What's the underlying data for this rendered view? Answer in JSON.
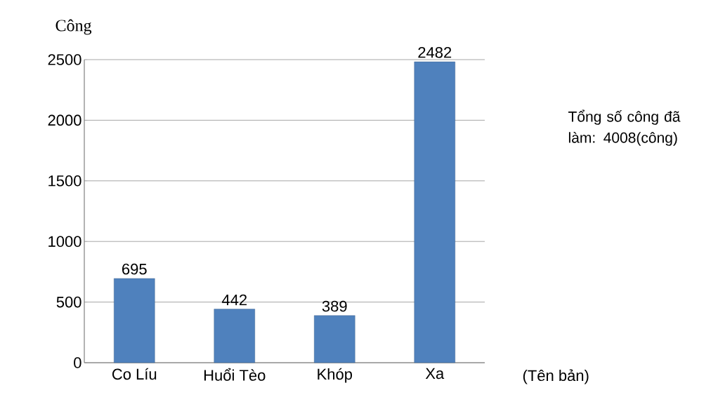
{
  "chart_data": {
    "type": "bar",
    "ylabel": "Công",
    "xlabel": "(Tên bản)",
    "categories": [
      "Co Líu",
      "Huổi Tèo",
      "Khóp",
      "Xa"
    ],
    "values": [
      695,
      442,
      389,
      2482
    ],
    "color": "#4f81bd",
    "ylim": [
      0,
      2500
    ],
    "yticks": [
      0,
      500,
      1000,
      1500,
      2000,
      2500
    ],
    "grid": "y",
    "data_labels": true,
    "annotations": [
      "Tổng số công đã làm: 4008(công)"
    ]
  }
}
